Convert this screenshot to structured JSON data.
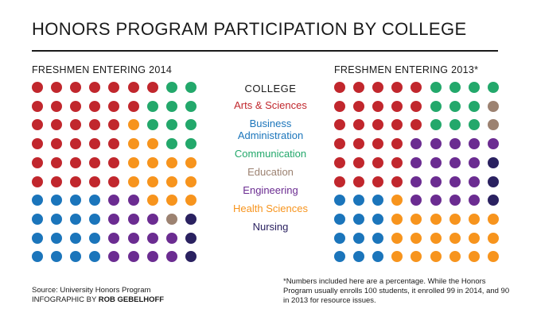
{
  "title": "HONORS PROGRAM PARTICIPATION BY COLLEGE",
  "legend_heading": "COLLEGE",
  "colleges": [
    {
      "key": "arts",
      "label": "Arts & Sciences",
      "color": "#c1272d"
    },
    {
      "key": "business",
      "label": "Business\nAdministration",
      "color": "#1b75bb"
    },
    {
      "key": "communication",
      "label": "Communication",
      "color": "#23a86b"
    },
    {
      "key": "education",
      "label": "Education",
      "color": "#9c8271"
    },
    {
      "key": "engineering",
      "label": "Engineering",
      "color": "#6b2c91"
    },
    {
      "key": "health",
      "label": "Health Sciences",
      "color": "#f7941d"
    },
    {
      "key": "nursing",
      "label": "Nursing",
      "color": "#2a2160"
    }
  ],
  "source": {
    "line1": "Source: University Honors Program",
    "line2_prefix": "INFOGRAPHIC BY ",
    "line2_name": "ROB GEBELHOFF"
  },
  "footnote": "*Numbers included here are a percentage. While the Honors Program usually enrolls 100 students, it enrolled 99 in 2014, and 90 in 2013 for resource issues.",
  "chart_data": [
    {
      "type": "waffle",
      "title": "FRESHMEN ENTERING 2014",
      "rows": 10,
      "cols": 9,
      "grid": [
        [
          "arts",
          "arts",
          "arts",
          "arts",
          "arts",
          "arts",
          "arts",
          "communication",
          "communication"
        ],
        [
          "arts",
          "arts",
          "arts",
          "arts",
          "arts",
          "arts",
          "communication",
          "communication",
          "communication"
        ],
        [
          "arts",
          "arts",
          "arts",
          "arts",
          "arts",
          "health",
          "communication",
          "communication",
          "communication"
        ],
        [
          "arts",
          "arts",
          "arts",
          "arts",
          "arts",
          "health",
          "health",
          "communication",
          "communication"
        ],
        [
          "arts",
          "arts",
          "arts",
          "arts",
          "arts",
          "health",
          "health",
          "health",
          "health"
        ],
        [
          "arts",
          "arts",
          "arts",
          "arts",
          "arts",
          "health",
          "health",
          "health",
          "health"
        ],
        [
          "business",
          "business",
          "business",
          "business",
          "engineering",
          "engineering",
          "health",
          "health",
          "health"
        ],
        [
          "business",
          "business",
          "business",
          "business",
          "engineering",
          "engineering",
          "engineering",
          "education",
          "nursing"
        ],
        [
          "business",
          "business",
          "business",
          "business",
          "engineering",
          "engineering",
          "engineering",
          "engineering",
          "nursing"
        ],
        [
          "business",
          "business",
          "business",
          "business",
          "engineering",
          "engineering",
          "engineering",
          "engineering",
          "nursing"
        ]
      ]
    },
    {
      "type": "waffle",
      "title": "FRESHMEN ENTERING 2013*",
      "rows": 10,
      "cols": 9,
      "grid": [
        [
          "arts",
          "arts",
          "arts",
          "arts",
          "arts",
          "communication",
          "communication",
          "communication",
          "communication"
        ],
        [
          "arts",
          "arts",
          "arts",
          "arts",
          "arts",
          "communication",
          "communication",
          "communication",
          "education"
        ],
        [
          "arts",
          "arts",
          "arts",
          "arts",
          "arts",
          "communication",
          "communication",
          "communication",
          "education"
        ],
        [
          "arts",
          "arts",
          "arts",
          "arts",
          "engineering",
          "engineering",
          "engineering",
          "engineering",
          "engineering"
        ],
        [
          "arts",
          "arts",
          "arts",
          "arts",
          "engineering",
          "engineering",
          "engineering",
          "engineering",
          "nursing"
        ],
        [
          "arts",
          "arts",
          "arts",
          "arts",
          "engineering",
          "engineering",
          "engineering",
          "engineering",
          "nursing"
        ],
        [
          "business",
          "business",
          "business",
          "health",
          "engineering",
          "engineering",
          "engineering",
          "engineering",
          "nursing"
        ],
        [
          "business",
          "business",
          "business",
          "health",
          "health",
          "health",
          "health",
          "health",
          "health"
        ],
        [
          "business",
          "business",
          "business",
          "health",
          "health",
          "health",
          "health",
          "health",
          "health"
        ],
        [
          "business",
          "business",
          "business",
          "health",
          "health",
          "health",
          "health",
          "health",
          "health"
        ]
      ]
    }
  ]
}
